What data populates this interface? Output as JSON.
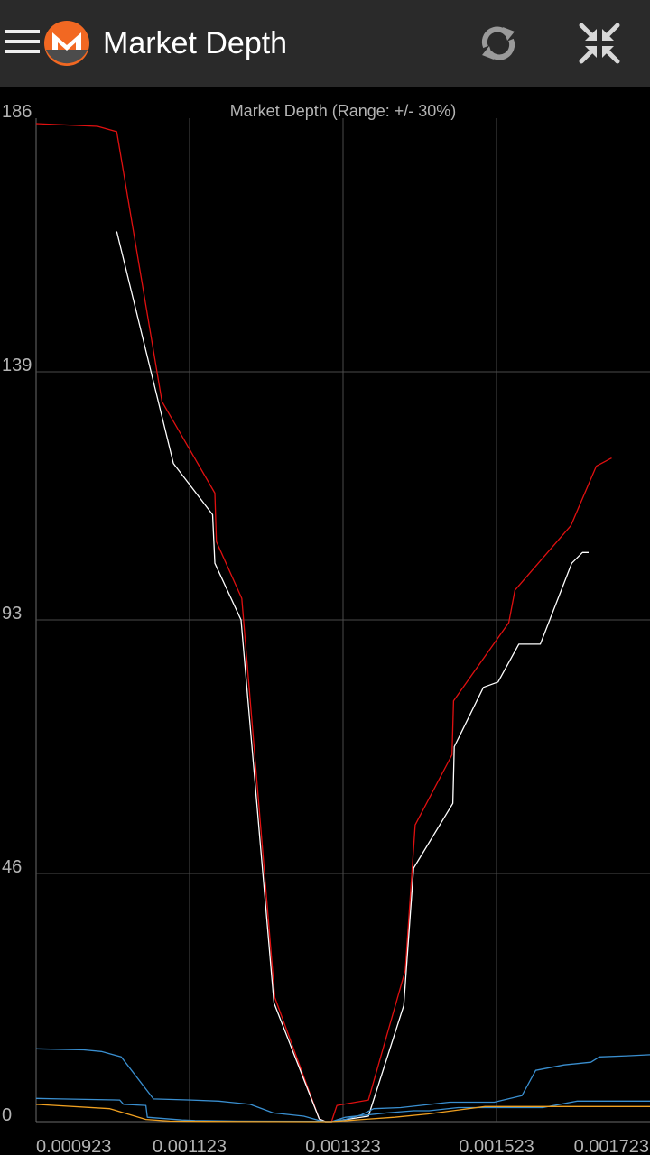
{
  "appbar": {
    "title": "Market Depth",
    "menu_icon": "hamburger-icon",
    "logo_icon": "monero-logo-icon",
    "refresh_icon": "refresh-icon",
    "collapse_icon": "collapse-icon",
    "background": "#2a2a2a",
    "logo_color": "#f26822"
  },
  "chart_data": {
    "type": "line",
    "title": "Market Depth (Range: +/- 30%)",
    "xlabel": "",
    "ylabel": "",
    "xlim": [
      0.000923,
      0.001723
    ],
    "ylim": [
      0,
      186
    ],
    "x_ticks": [
      "0.000923",
      "0.001123",
      "0.001323",
      "0.001523",
      "0.001723"
    ],
    "y_ticks": [
      "186",
      "139",
      "93",
      "46",
      "0"
    ],
    "grid": true,
    "legend": "none",
    "series": [
      {
        "color": "#e01010",
        "points": [
          [
            0.000923,
            185.0
          ],
          [
            0.001003,
            184.5
          ],
          [
            0.001028,
            183.5
          ],
          [
            0.001087,
            133.5
          ],
          [
            0.001156,
            116.5
          ],
          [
            0.001158,
            107.5
          ],
          [
            0.001191,
            97.0
          ],
          [
            0.001234,
            23.0
          ],
          [
            0.001292,
            0.5
          ],
          [
            0.0013,
            0.0
          ],
          [
            0.001308,
            0.0
          ],
          [
            0.001315,
            3.0
          ],
          [
            0.001356,
            4.0
          ],
          [
            0.001404,
            28.0
          ],
          [
            0.001417,
            55.0
          ],
          [
            0.001465,
            68.0
          ],
          [
            0.001467,
            78.0
          ],
          [
            0.001539,
            92.5
          ],
          [
            0.001547,
            98.5
          ],
          [
            0.00162,
            110.5
          ],
          [
            0.001653,
            121.5
          ],
          [
            0.001673,
            123.0
          ]
        ]
      },
      {
        "color": "#ffffff",
        "points": [
          [
            0.001028,
            165.0
          ],
          [
            0.001102,
            122.0
          ],
          [
            0.001153,
            112.5
          ],
          [
            0.001156,
            103.5
          ],
          [
            0.00119,
            93.0
          ],
          [
            0.001233,
            22.0
          ],
          [
            0.001292,
            0.5
          ],
          [
            0.0013,
            0.0
          ],
          [
            0.001308,
            0.0
          ],
          [
            0.001356,
            1.0
          ],
          [
            0.001402,
            21.5
          ],
          [
            0.001415,
            47.0
          ],
          [
            0.001466,
            59.0
          ],
          [
            0.001468,
            69.5
          ],
          [
            0.001506,
            80.5
          ],
          [
            0.001525,
            81.5
          ],
          [
            0.001552,
            88.5
          ],
          [
            0.00158,
            88.5
          ],
          [
            0.001621,
            103.5
          ],
          [
            0.001635,
            105.5
          ],
          [
            0.001643,
            105.5
          ]
        ]
      },
      {
        "color": "#3a8fd0",
        "points": [
          [
            0.000923,
            13.5
          ],
          [
            0.000985,
            13.3
          ],
          [
            0.001008,
            13.0
          ],
          [
            0.001034,
            12.0
          ],
          [
            0.001076,
            4.2
          ],
          [
            0.001125,
            4.0
          ],
          [
            0.001161,
            3.8
          ],
          [
            0.001202,
            3.2
          ],
          [
            0.001232,
            1.6
          ],
          [
            0.001272,
            1.0
          ],
          [
            0.001292,
            0.2
          ],
          [
            0.0013,
            0.0
          ],
          [
            0.001308,
            0.0
          ],
          [
            0.001326,
            0.4
          ],
          [
            0.001346,
            1.2
          ],
          [
            0.001363,
            2.4
          ],
          [
            0.001398,
            2.6
          ],
          [
            0.001462,
            3.6
          ],
          [
            0.00152,
            3.6
          ],
          [
            0.001556,
            4.8
          ],
          [
            0.001574,
            9.5
          ],
          [
            0.001611,
            10.5
          ],
          [
            0.001646,
            11.0
          ],
          [
            0.001657,
            12.0
          ],
          [
            0.001693,
            12.2
          ],
          [
            0.001723,
            12.4
          ]
        ]
      },
      {
        "color": "#3a8fd0",
        "points": [
          [
            0.000923,
            4.3
          ],
          [
            0.000955,
            4.2
          ],
          [
            0.001032,
            4.0
          ],
          [
            0.001037,
            3.2
          ],
          [
            0.001066,
            3.0
          ],
          [
            0.001068,
            0.8
          ],
          [
            0.001113,
            0.3
          ],
          [
            0.00113,
            0.2
          ],
          [
            0.001185,
            0.1
          ],
          [
            0.001292,
            0.05
          ],
          [
            0.0013,
            0.0
          ],
          [
            0.001308,
            0.0
          ],
          [
            0.001326,
            0.8
          ],
          [
            0.00138,
            1.6
          ],
          [
            0.001415,
            2.0
          ],
          [
            0.001435,
            2.0
          ],
          [
            0.001473,
            2.6
          ],
          [
            0.001583,
            2.6
          ],
          [
            0.001628,
            3.8
          ],
          [
            0.001723,
            3.8
          ]
        ]
      },
      {
        "color": "#f0a020",
        "points": [
          [
            0.000923,
            3.2
          ],
          [
            0.001019,
            2.4
          ],
          [
            0.001066,
            0.4
          ],
          [
            0.001097,
            0.1
          ],
          [
            0.001144,
            0.05
          ],
          [
            0.001292,
            0.0
          ],
          [
            0.0013,
            0.0
          ],
          [
            0.001308,
            0.0
          ],
          [
            0.001349,
            0.4
          ],
          [
            0.00139,
            0.8
          ],
          [
            0.001433,
            1.4
          ],
          [
            0.001508,
            2.8
          ],
          [
            0.001723,
            2.8
          ]
        ]
      }
    ]
  }
}
